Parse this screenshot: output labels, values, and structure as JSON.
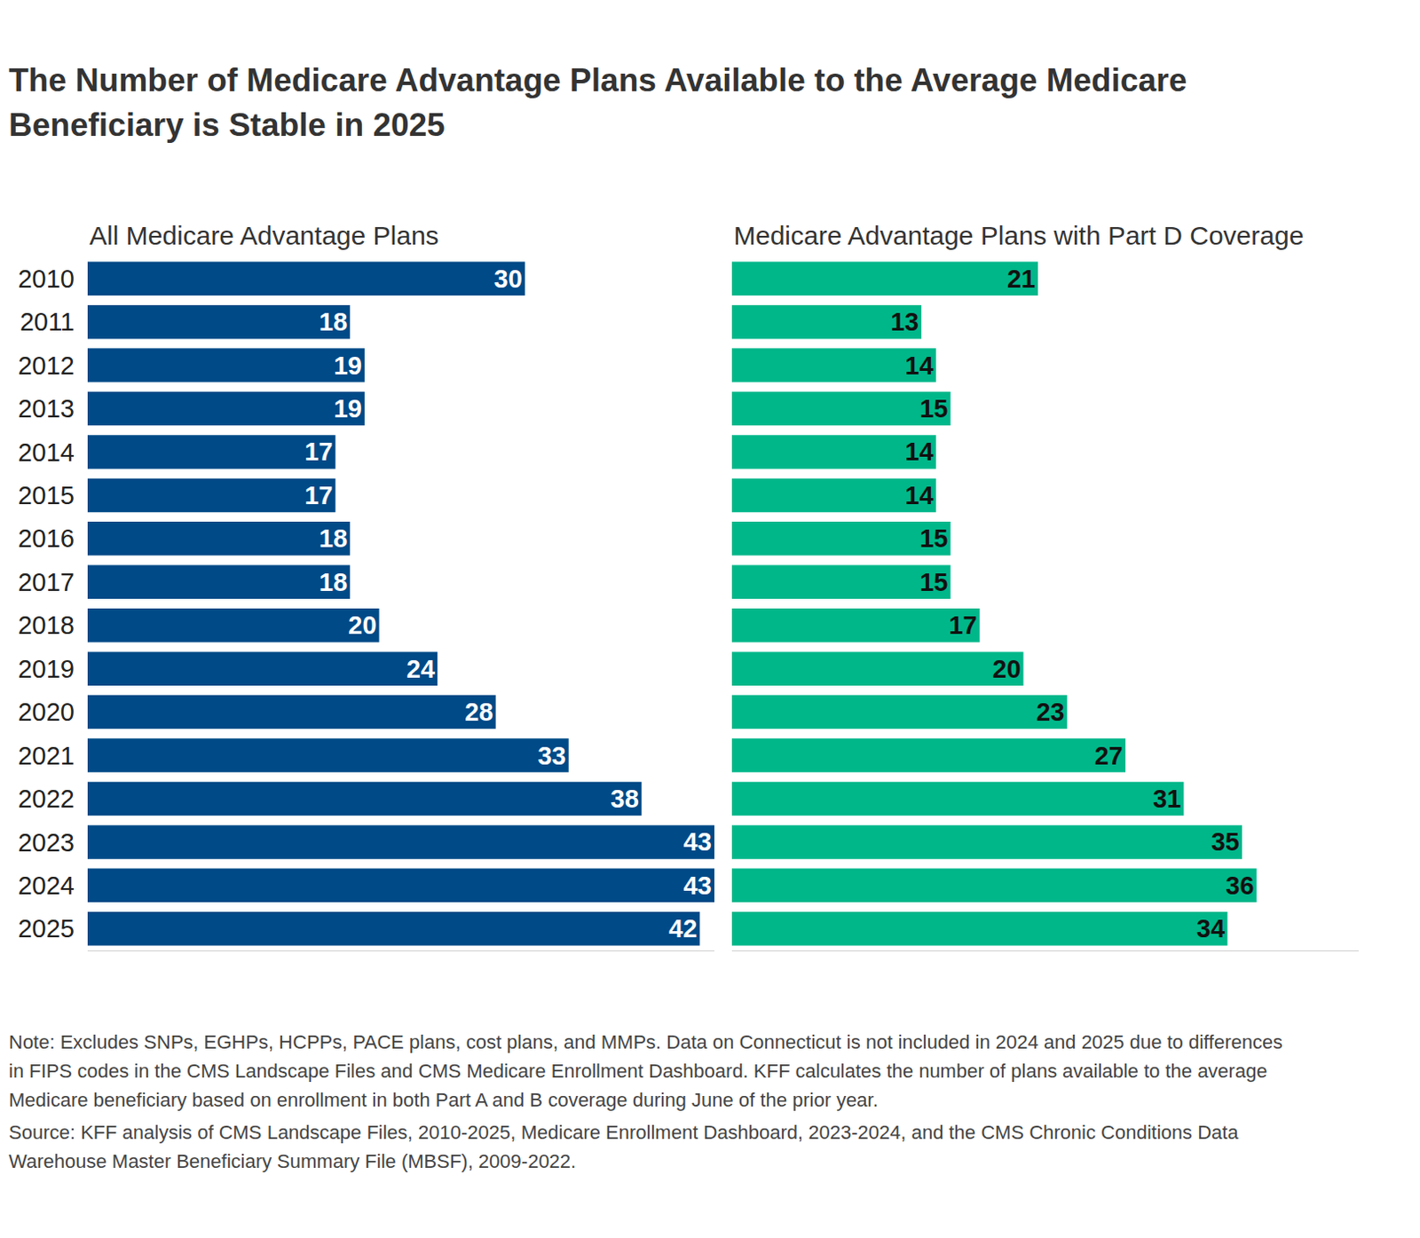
{
  "title": "The Number of Medicare Advantage Plans Available to the Average Medicare Beneficiary is Stable in 2025",
  "notes": [
    "Note: Excludes SNPs, EGHPs, HCPPs, PACE plans, cost plans, and MMPs. Data on Connecticut is not included in 2024 and 2025 due to differences in FIPS codes in the CMS Landscape Files and CMS Medicare Enrollment Dashboard. KFF calculates the number of plans available to the average Medicare beneficiary based on enrollment in both Part A and B coverage during June of the prior year.",
    "Source: KFF analysis of CMS Landscape Files, 2010-2025, Medicare Enrollment Dashboard, 2023-2024, and the CMS Chronic Conditions Data Warehouse Master Beneficiary Summary File (MBSF), 2009-2022."
  ],
  "chart_data": [
    {
      "type": "bar",
      "orientation": "horizontal",
      "title": "All Medicare Advantage Plans",
      "categories": [
        "2010",
        "2011",
        "2012",
        "2013",
        "2014",
        "2015",
        "2016",
        "2017",
        "2018",
        "2019",
        "2020",
        "2021",
        "2022",
        "2023",
        "2024",
        "2025"
      ],
      "values": [
        30,
        18,
        19,
        19,
        17,
        17,
        18,
        18,
        20,
        24,
        28,
        33,
        38,
        43,
        43,
        42
      ],
      "color": "#004a87",
      "data_labels": true,
      "xlim": [
        0,
        43
      ],
      "xticks": [],
      "grid": false,
      "tick_labels": "y"
    },
    {
      "type": "bar",
      "orientation": "horizontal",
      "title": "Medicare Advantage Plans with Part D Coverage",
      "categories": [
        "2010",
        "2011",
        "2012",
        "2013",
        "2014",
        "2015",
        "2016",
        "2017",
        "2018",
        "2019",
        "2020",
        "2021",
        "2022",
        "2023",
        "2024",
        "2025"
      ],
      "values": [
        21,
        13,
        14,
        15,
        14,
        14,
        15,
        15,
        17,
        20,
        23,
        27,
        31,
        35,
        36,
        34
      ],
      "color": "#00b78a",
      "data_labels": true,
      "xlim": [
        0,
        43
      ],
      "xticks": [],
      "grid": false,
      "tick_labels": false
    }
  ]
}
